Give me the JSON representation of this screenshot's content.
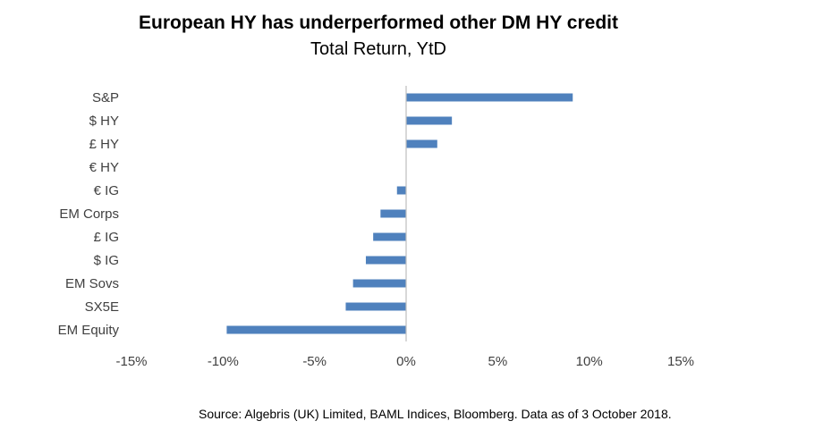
{
  "chart_data": {
    "type": "bar",
    "orientation": "horizontal",
    "title": "European HY has underperformed other DM HY credit",
    "subtitle": "Total Return, YtD",
    "categories": [
      "S&P",
      "$ HY",
      "£ HY",
      "€ HY",
      "€ IG",
      "EM Corps",
      "£ IG",
      "$ IG",
      "EM Sovs",
      "SX5E",
      "EM Equity"
    ],
    "values": [
      9.1,
      2.5,
      1.7,
      0.0,
      -0.5,
      -1.4,
      -1.8,
      -2.2,
      -2.9,
      -3.3,
      -9.8
    ],
    "xlim": [
      -15,
      15
    ],
    "xticks": [
      -15,
      -10,
      -5,
      0,
      5,
      10,
      15
    ],
    "xtick_labels": [
      "-15%",
      "-10%",
      "-5%",
      "0%",
      "5%",
      "10%",
      "15%"
    ],
    "xlabel": "",
    "ylabel": "",
    "grid": false,
    "bar_color": "#4f81bd",
    "axis_color": "#bfbfbf"
  },
  "source_note": "Source: Algebris (UK) Limited, BAML Indices, Bloomberg. Data as of 3 October 2018."
}
